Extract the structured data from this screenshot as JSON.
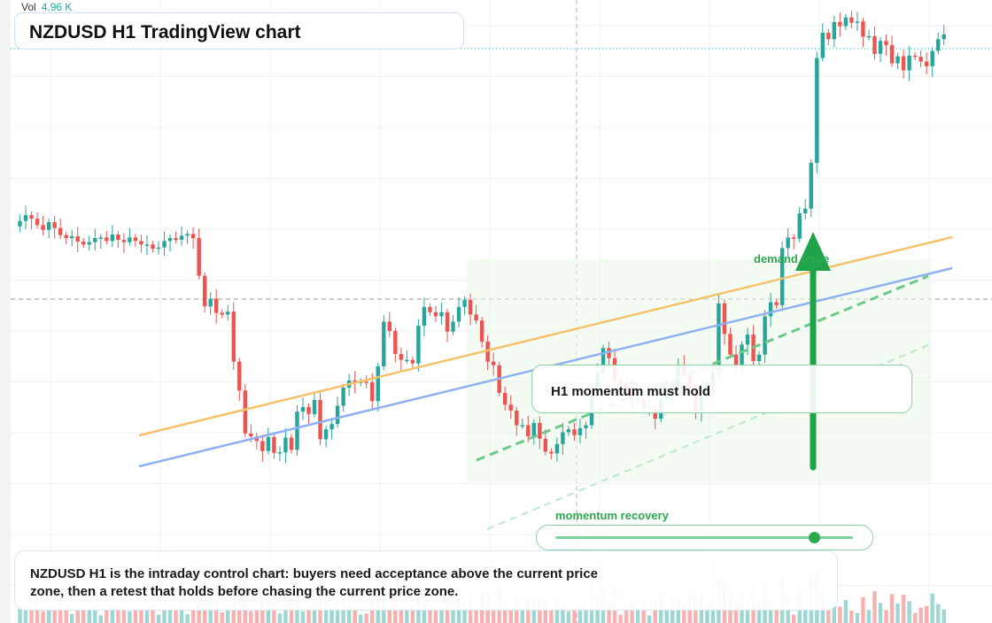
{
  "header": {
    "vol_label": "Vol",
    "vol_value": "4.96 K"
  },
  "title": "NZDUSD H1 TradingView chart",
  "annotations": {
    "callout": "H1 momentum must hold",
    "demand_label": "demand trade",
    "momentum_label": "momentum recovery",
    "momentum_level": 0.87
  },
  "note": "NZDUSD H1 is the intraday control chart: buyers need acceptance above the current price zone, then a retest that holds before chasing the current price zone.",
  "colors": {
    "up": "#26a69a",
    "down": "#ef5350",
    "trend_yellow": "#f5c26b",
    "trend_blue": "#8fb0f0",
    "accent_green": "#1fa34a"
  },
  "chart_data": {
    "type": "candlestick",
    "timeframe": "H1",
    "symbol": "NZDUSD",
    "series": [
      {
        "name": "price",
        "values": [
          63.8,
          64.7,
          65.7,
          65.1,
          64.0,
          63.2,
          64.5,
          63.5,
          62.3,
          61.8,
          62.1,
          61.2,
          60.7,
          61.1,
          61.8,
          61.9,
          61.3,
          62.4,
          61.5,
          61.1,
          61.9,
          61.3,
          60.7,
          60.7,
          60.0,
          60.2,
          61.3,
          61.8,
          61.5,
          62.2,
          62.5,
          61.8,
          55.4,
          50.2,
          51.5,
          49.1,
          48.8,
          49.3,
          40.8,
          35.9,
          28.6,
          28.1,
          27.3,
          25.6,
          28.0,
          25.3,
          25.4,
          27.9,
          25.8,
          32.3,
          33.1,
          31.9,
          34.3,
          27.6,
          29.3,
          30.2,
          33.3,
          36.4,
          37.6,
          37.2,
          37.4,
          37.3,
          34.1,
          40.0,
          47.6,
          46.0,
          42.1,
          41.1,
          41.1,
          40.5,
          46.9,
          50.1,
          49.2,
          48.5,
          49.2,
          45.9,
          47.6,
          50.1,
          51.3,
          48.8,
          47.8,
          44.2,
          40.8,
          40.2,
          35.5,
          33.5,
          32.5,
          30.0,
          30.0,
          28.1,
          30.4,
          27.7,
          25.5,
          25.2,
          26.8,
          28.8,
          29.3,
          28.3,
          29.5,
          30.0,
          35.9,
          38.9,
          43.1,
          41.4,
          37.5,
          37.3,
          36.2,
          34.3,
          34.4,
          33.0,
          33.1,
          31.1,
          34.5,
          35.2,
          37.2,
          40.3,
          38.6,
          35.9,
          32.4,
          35.4,
          37.1,
          39.3,
          50.7,
          45.5,
          42.0,
          39.9,
          43.7,
          45.4,
          40.9,
          42.0,
          48.5,
          50.9,
          50.4,
          60.1,
          61.9,
          61.7,
          66.0,
          66.8,
          74.6,
          92.4,
          96.7,
          95.6,
          98.5,
          97.8,
          99.3,
          98.4,
          98.6,
          96.0,
          96.1,
          93.1,
          95.3,
          94.6,
          91.5,
          92.7,
          90.3,
          92.8,
          92.6,
          91.8,
          91.0,
          93.6,
          95.6,
          96.4
        ]
      }
    ],
    "ylim": [
      0,
      100
    ],
    "lines": [
      {
        "name": "yellow trendline"
      },
      {
        "name": "blue trendline"
      },
      {
        "name": "green dashed projection"
      },
      {
        "name": "light green dashed projection"
      }
    ],
    "grid": true,
    "volume": true
  }
}
